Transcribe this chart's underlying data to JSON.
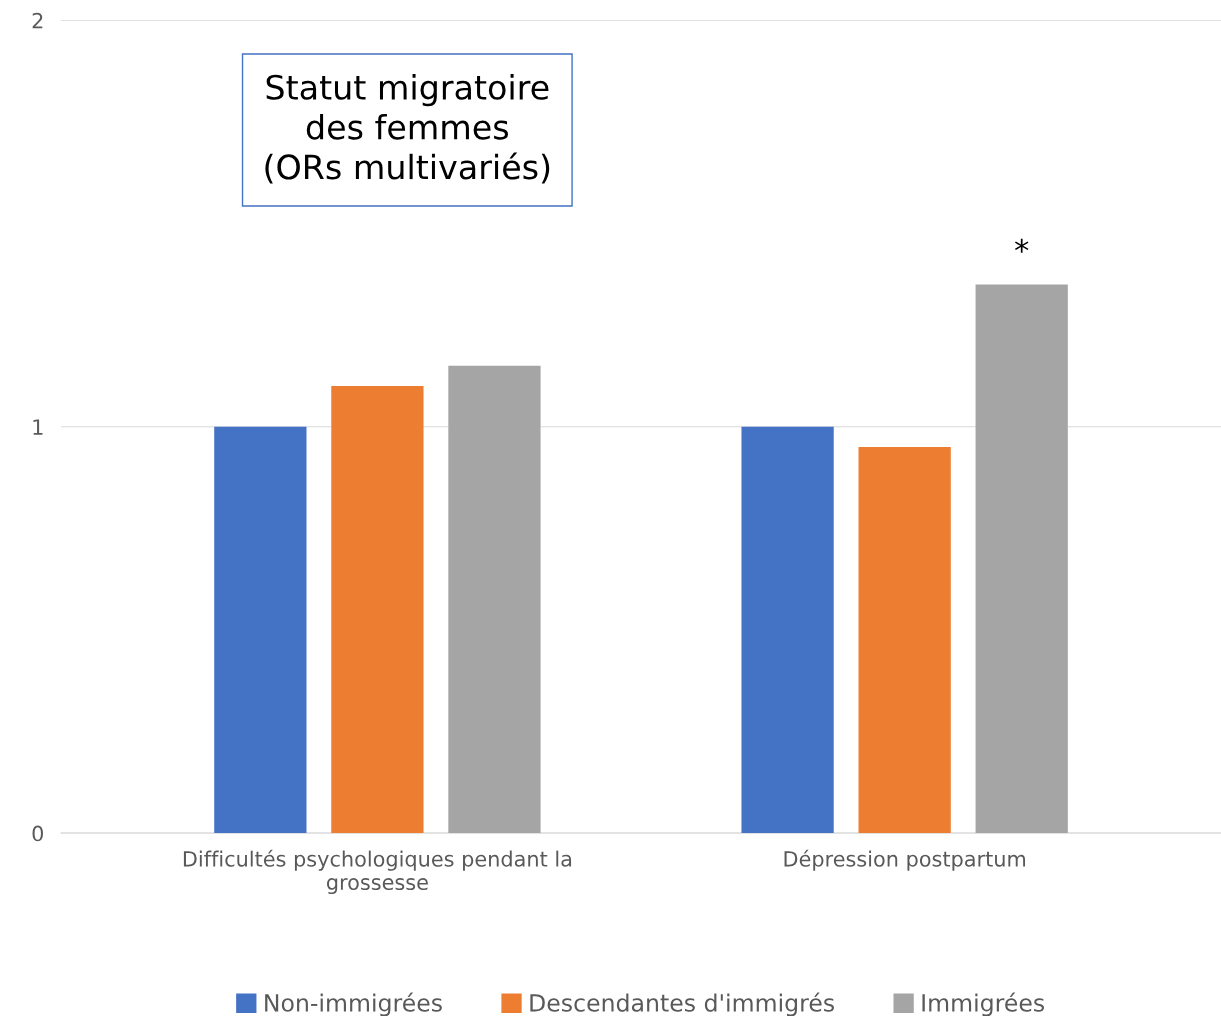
{
  "chart_data": {
    "type": "bar",
    "title": "Statut migratoire\ndes femmes\n(ORs multivariés)",
    "categories": [
      "Difficultés psychologiques pendant la\ngrossesse",
      "Dépression postpartum"
    ],
    "series": [
      {
        "name": "Non-immigrées",
        "color": "#4472c4",
        "values": [
          1.0,
          1.0
        ]
      },
      {
        "name": "Descendantes d'immigrés",
        "color": "#ed7d31",
        "values": [
          1.1,
          0.95
        ]
      },
      {
        "name": "Immigrées",
        "color": "#a5a5a5",
        "values": [
          1.15,
          1.35
        ]
      }
    ],
    "annotations": [
      "*"
    ],
    "ylim": [
      0,
      2
    ],
    "yticks": [
      0,
      1,
      2
    ],
    "grid": "y",
    "legend": "bottom"
  }
}
